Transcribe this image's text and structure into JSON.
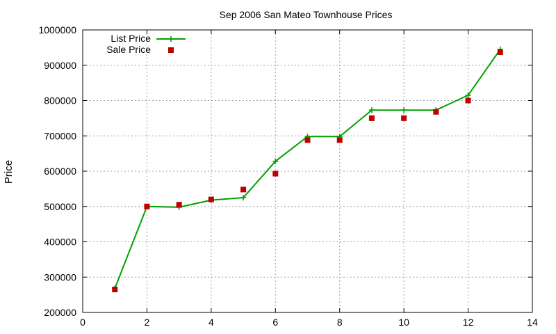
{
  "chart_data": {
    "type": "line",
    "title": "Sep 2006 San Mateo Townhouse Prices",
    "xlabel": "",
    "ylabel": "Price",
    "xlim": [
      0,
      14
    ],
    "ylim": [
      200000,
      1000000
    ],
    "x_ticks": [
      "0",
      "2",
      "4",
      "6",
      "8",
      "10",
      "12",
      "14"
    ],
    "y_ticks": [
      "200000",
      "300000",
      "400000",
      "500000",
      "600000",
      "700000",
      "800000",
      "900000",
      "1000000"
    ],
    "grid": true,
    "legend_position": "top-left",
    "x": [
      1,
      2,
      3,
      4,
      5,
      6,
      7,
      8,
      9,
      10,
      11,
      12,
      13
    ],
    "series": [
      {
        "name": "List Price",
        "style": "line-with-plus-markers",
        "color": "#00a000",
        "values": [
          268000,
          500000,
          498000,
          518000,
          525000,
          628000,
          698000,
          698000,
          773000,
          773000,
          773000,
          815000,
          945000
        ]
      },
      {
        "name": "Sale Price",
        "style": "square-markers",
        "color": "#c00000",
        "values": [
          265000,
          500000,
          505000,
          520000,
          548000,
          593000,
          688000,
          688000,
          750000,
          750000,
          768000,
          800000,
          937000
        ]
      }
    ]
  }
}
